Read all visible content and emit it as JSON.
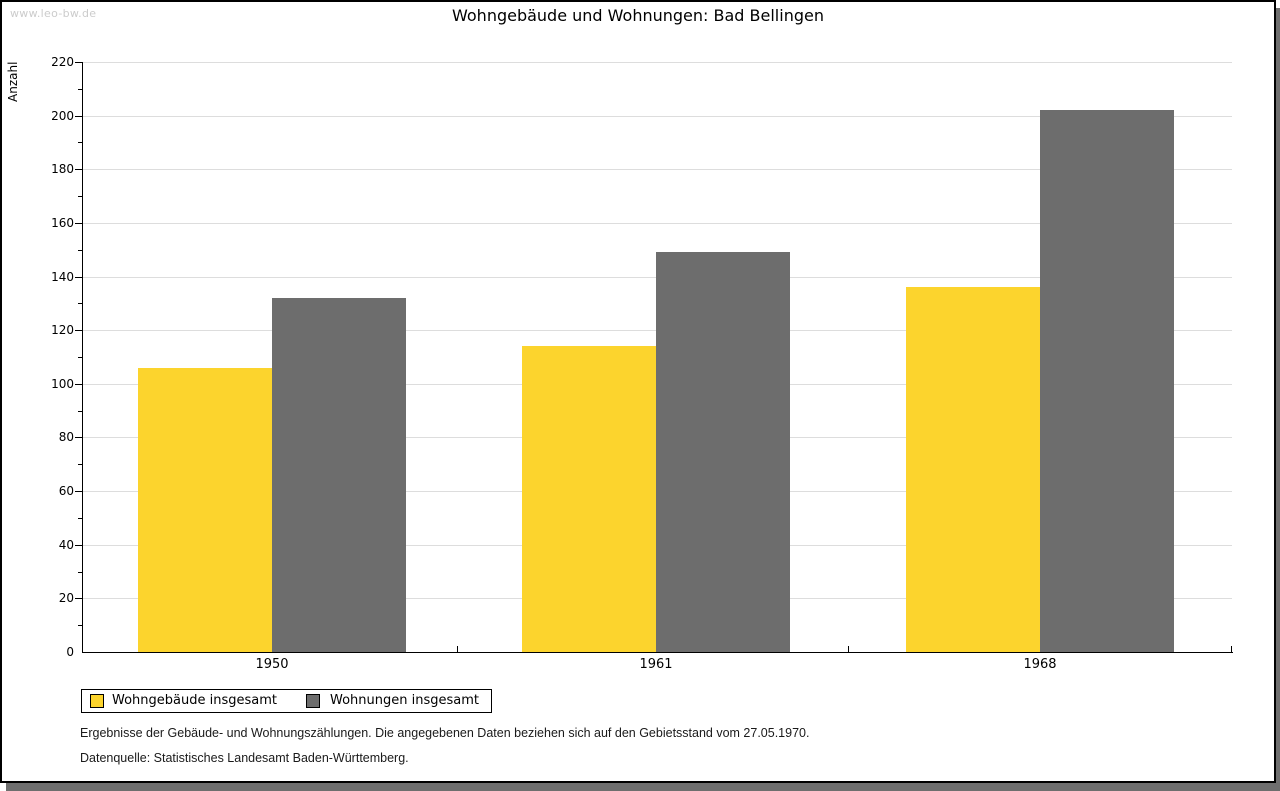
{
  "watermark": "www.leo-bw.de",
  "title": "Wohngebäude und Wohnungen: Bad Bellingen",
  "chart_data": {
    "type": "bar",
    "title": "Wohngebäude und Wohnungen: Bad Bellingen",
    "categories": [
      "1950",
      "1961",
      "1968"
    ],
    "series": [
      {
        "name": "Wohngebäude insgesamt",
        "color": "#FCD42D",
        "values": [
          106,
          114,
          136
        ]
      },
      {
        "name": "Wohnungen insgesamt",
        "color": "#6D6D6D",
        "values": [
          132,
          149,
          202
        ]
      }
    ],
    "xlabel": "",
    "ylabel": "Anzahl",
    "ylim": [
      0,
      220
    ],
    "ytick_step": 20,
    "minor_tick_step": 10,
    "grid": true,
    "gridline_color": "#DDDDDD",
    "legend_position": "bottom-left"
  },
  "footer": {
    "line1": "Ergebnisse der Gebäude- und Wohnungszählungen. Die angegebenen Daten beziehen sich auf den Gebietsstand vom 27.05.1970.",
    "line2": "Datenquelle: Statistisches Landesamt Baden-Württemberg."
  },
  "colors": {
    "page_border": "#000000",
    "page_shadow": "#6E6E6E",
    "watermark": "#CCCCCC",
    "axis": "#000000"
  }
}
